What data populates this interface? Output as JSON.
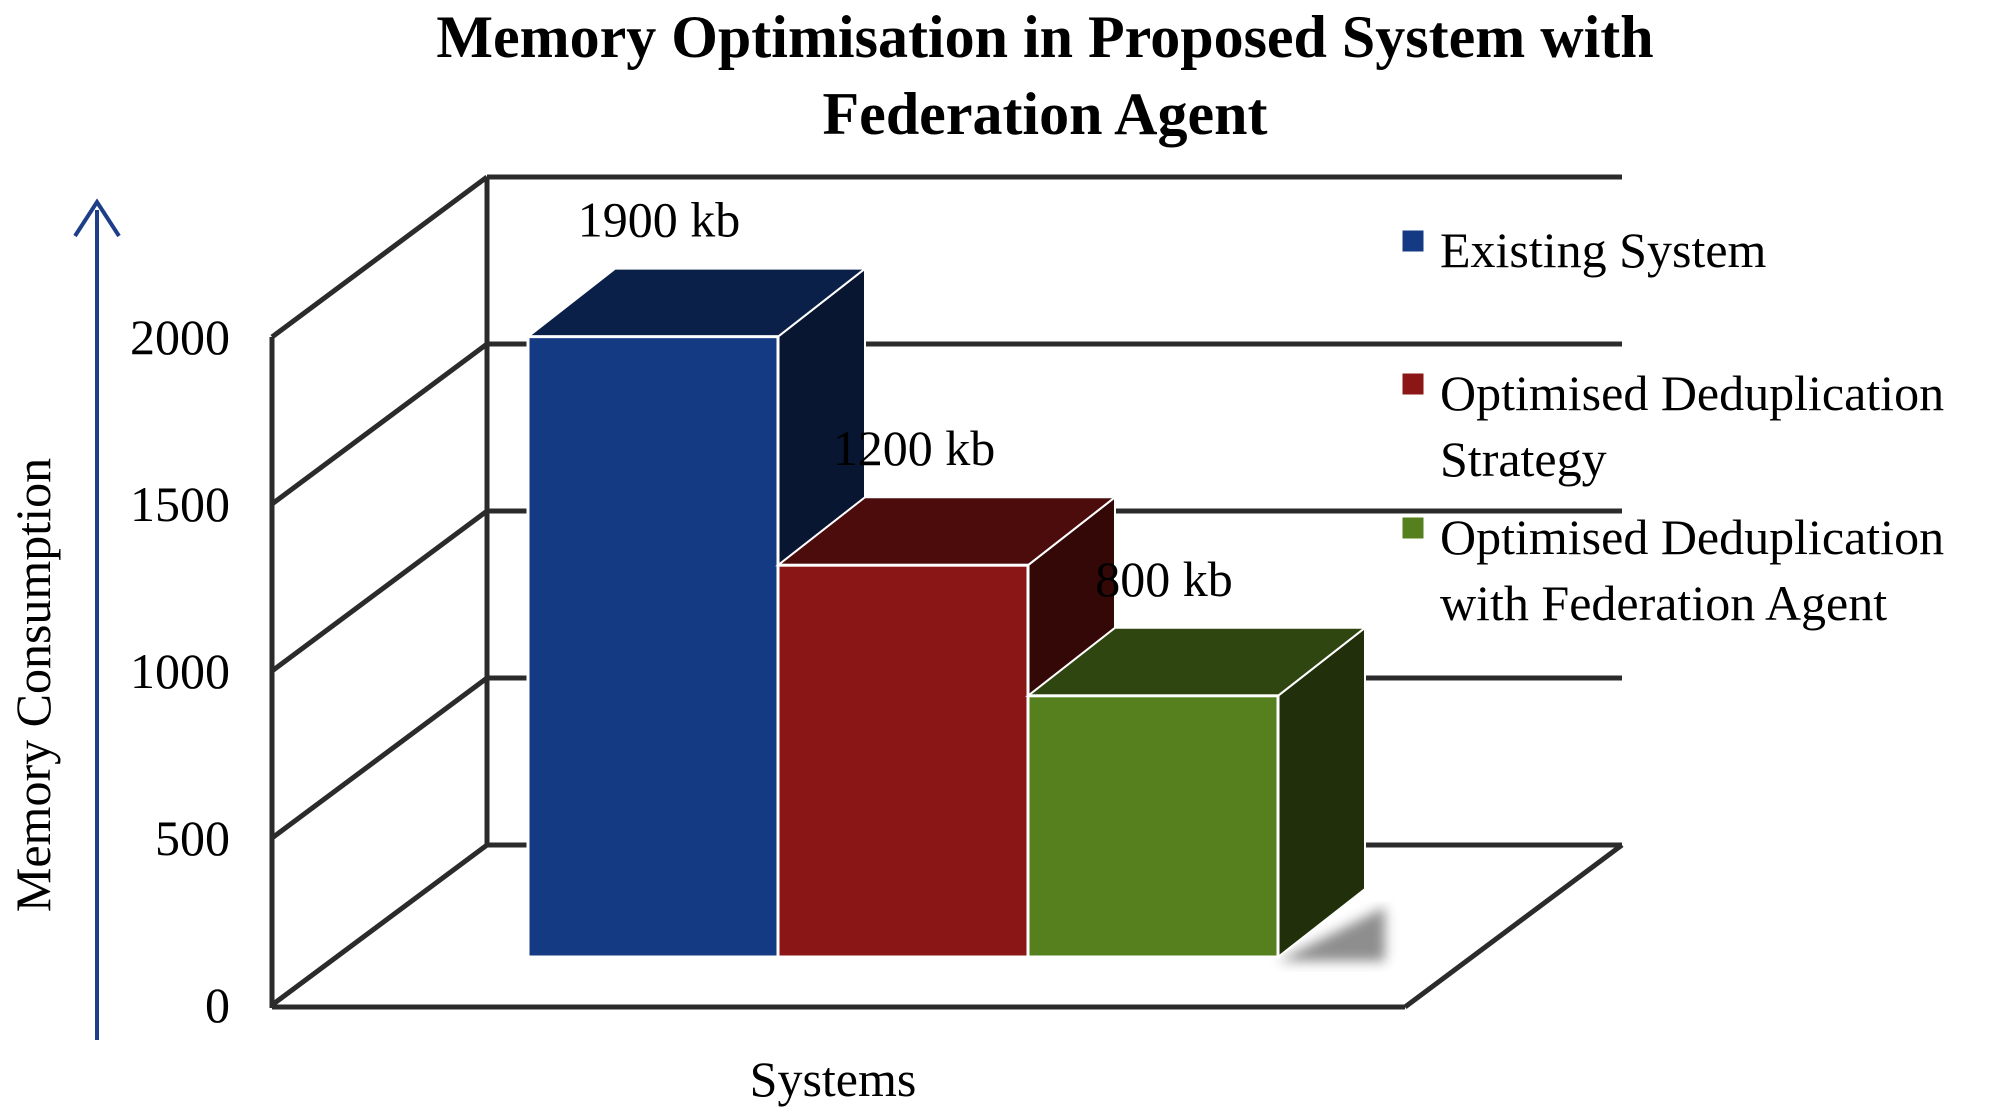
{
  "chart_data": {
    "type": "bar",
    "title": "Memory Optimisation in Proposed System with Federation Agent",
    "title_lines": [
      "Memory Optimisation in Proposed System with",
      "Federation Agent"
    ],
    "xlabel": "Systems",
    "ylabel": "Memory Consumption",
    "ylim": [
      0,
      2000
    ],
    "yticks": [
      "0",
      "500",
      "1000",
      "1500",
      "2000"
    ],
    "grid": true,
    "legend_position": "right",
    "series": [
      {
        "name": "Existing System",
        "legend_lines": [
          "Existing System"
        ],
        "value": 1900,
        "data_label": "1900 kb",
        "color": "#143A84"
      },
      {
        "name": "Optimised Deduplication Strategy",
        "legend_lines": [
          "Optimised Deduplication",
          "Strategy"
        ],
        "value": 1200,
        "data_label": "1200 kb",
        "color": "#8B1616"
      },
      {
        "name": "Optimised Deduplication with Federation Agent",
        "legend_lines": [
          "Optimised Deduplication",
          "with Federation Agent"
        ],
        "value": 800,
        "data_label": "800 kb",
        "color": "#567F1E"
      }
    ]
  }
}
